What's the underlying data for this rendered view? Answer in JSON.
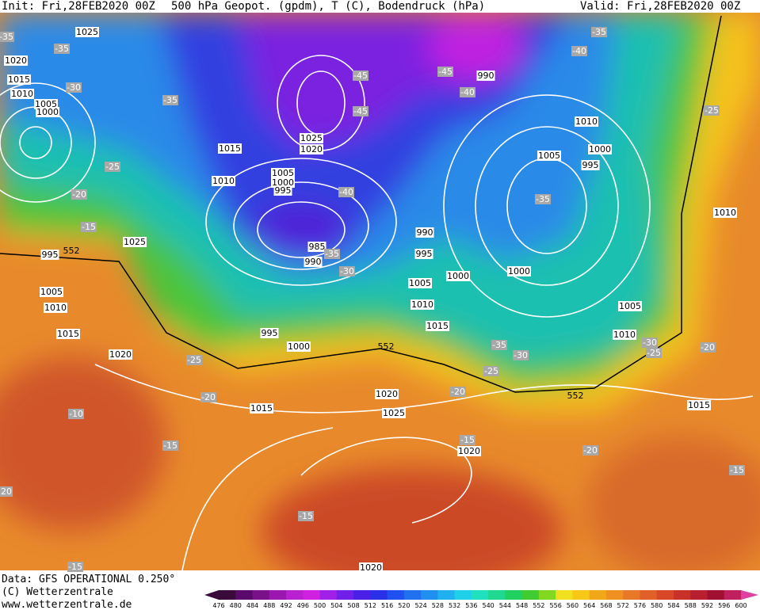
{
  "header": {
    "init": "Init: Fri,28FEB2020 00Z",
    "title": "500 hPa Geopot. (gpdm), T (C), Bodendruck (hPa)",
    "valid": "Valid: Fri,28FEB2020 00Z"
  },
  "footer": {
    "data": "Data: GFS OPERATIONAL 0.250°",
    "copyright": "(C) Wetterzentrale",
    "url": "www.wetterzentrale.de"
  },
  "colorbar": {
    "labels": [
      "476",
      "480",
      "484",
      "488",
      "492",
      "496",
      "500",
      "504",
      "508",
      "512",
      "516",
      "520",
      "524",
      "528",
      "532",
      "536",
      "540",
      "544",
      "548",
      "552",
      "556",
      "560",
      "564",
      "568",
      "572",
      "576",
      "580",
      "584",
      "588",
      "592",
      "596",
      "600"
    ]
  },
  "map": {
    "isobar_labels": [
      "1025",
      "1020",
      "1015",
      "1010",
      "1005",
      "1000",
      "1015",
      "1010",
      "1025",
      "1020",
      "1005",
      "1000",
      "995",
      "985",
      "990",
      "1025",
      "995",
      "1005",
      "1010",
      "1015",
      "1020",
      "995",
      "1000",
      "990",
      "1010",
      "1000",
      "995",
      "1005",
      "990",
      "995",
      "1000",
      "1000",
      "1005",
      "1010",
      "1015",
      "1005",
      "1010",
      "1010",
      "1020",
      "1015",
      "1025",
      "1020",
      "1015",
      "1020"
    ],
    "temperature_labels": [
      "-35",
      "-35",
      "-30",
      "-35",
      "-25",
      "-20",
      "-15",
      "-45",
      "-45",
      "-45",
      "-40",
      "-35",
      "-40",
      "-40",
      "-35",
      "-30",
      "-35",
      "-25",
      "-30",
      "-25",
      "-20",
      "-35",
      "-30",
      "-25",
      "-25",
      "-20",
      "-20",
      "-15",
      "-20",
      "-15",
      "-10",
      "-15",
      "-15",
      "-15",
      "20"
    ],
    "contour_labels": [
      "552",
      "552",
      "552"
    ]
  }
}
